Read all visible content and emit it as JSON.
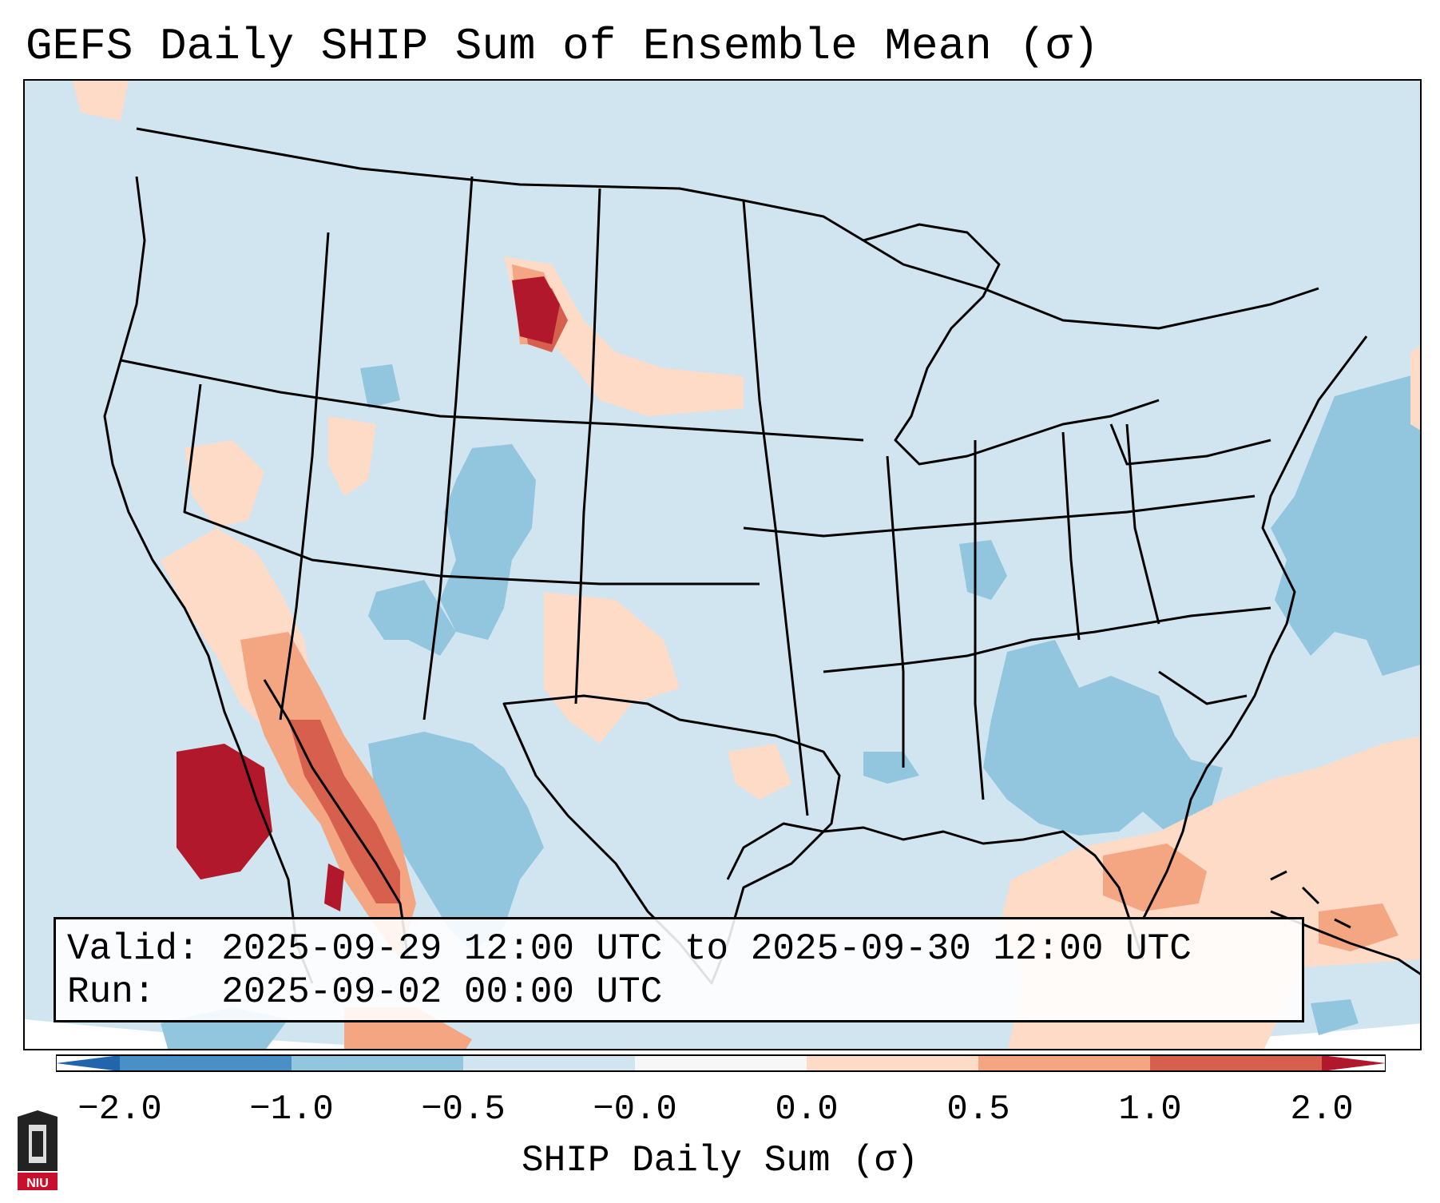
{
  "title": "GEFS Daily SHIP Sum of Ensemble Mean (σ)",
  "info": {
    "valid_label": "Valid:",
    "valid_range": "2025-09-29 12:00 UTC to 2025-09-30 12:00 UTC",
    "run_label": "Run:",
    "run_time": "2025-09-02 00:00 UTC"
  },
  "colorbar": {
    "label": "SHIP Daily Sum (σ)",
    "ticks": [
      "−2.0",
      "−1.0",
      "−0.5",
      "−0.0",
      "0.0",
      "0.5",
      "1.0",
      "2.0"
    ],
    "bins": [
      {
        "color": "#4a90c6"
      },
      {
        "color": "#92c5de"
      },
      {
        "color": "#d1e5f0"
      },
      {
        "color": "#f7f7f7"
      },
      {
        "color": "#fddbc7"
      },
      {
        "color": "#f4a582"
      },
      {
        "color": "#d6604d"
      }
    ],
    "under_color": "#2166ac",
    "over_color": "#b2182b"
  },
  "logo": {
    "text": "NIU",
    "color": "#c8102e"
  }
}
